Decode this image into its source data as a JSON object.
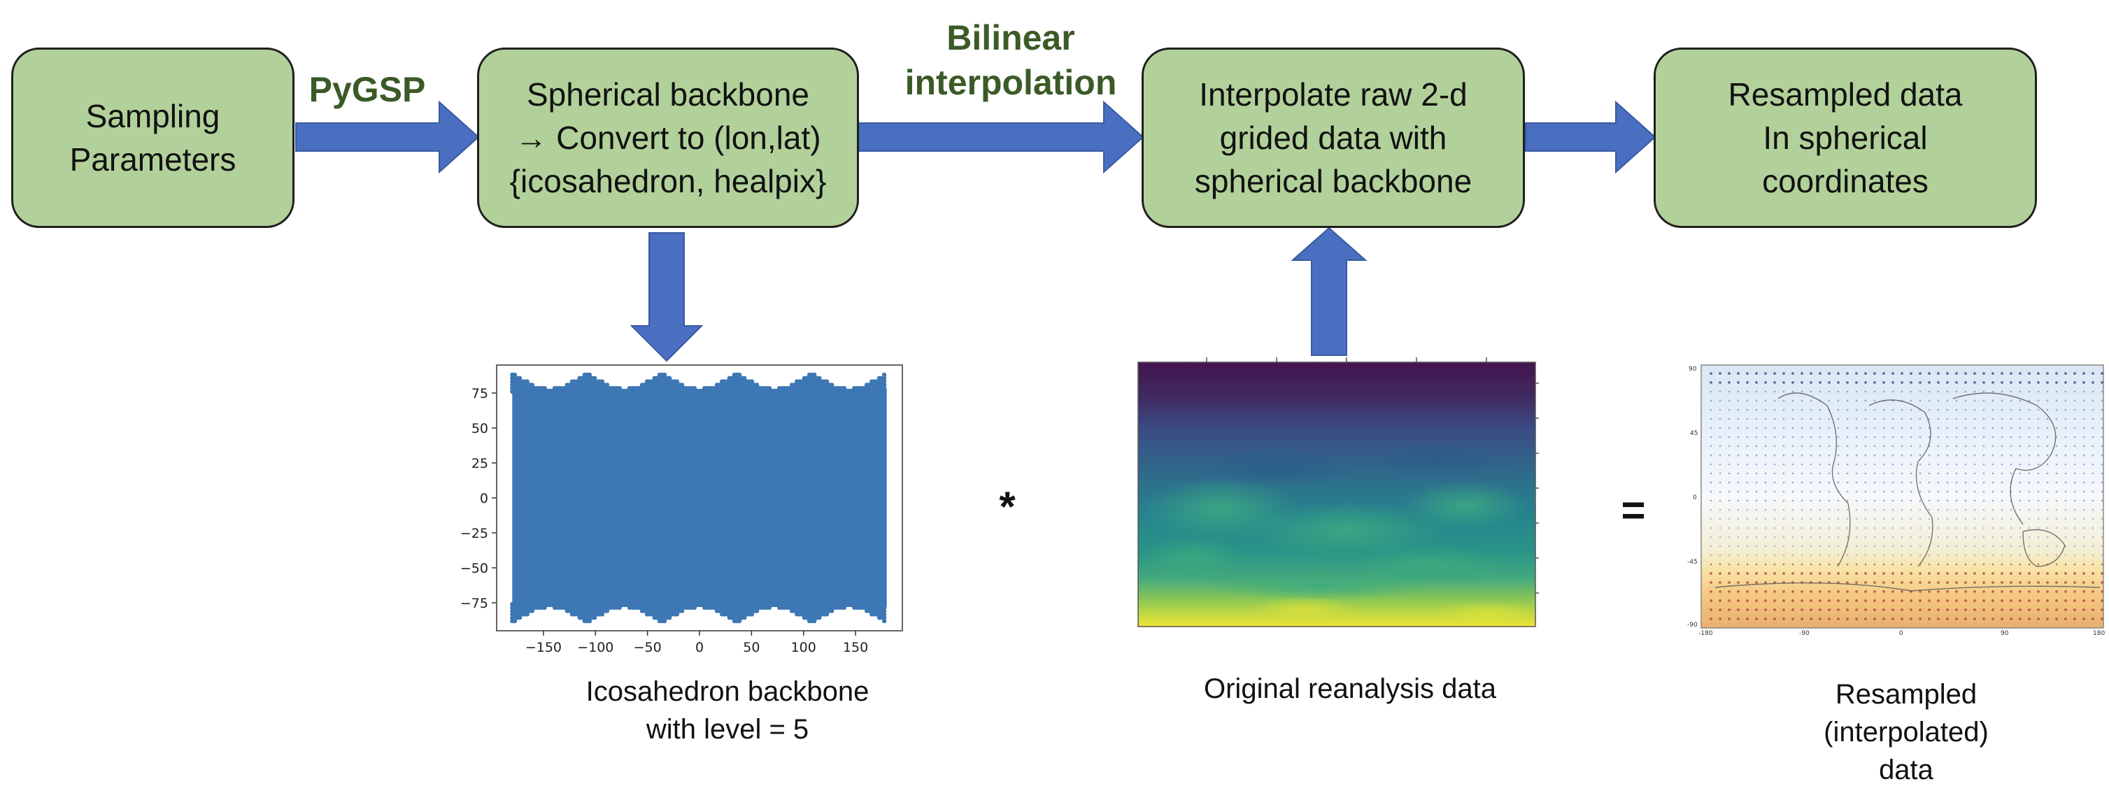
{
  "colors": {
    "box_fill": "#b2d19a",
    "arrow": "#4a6fc1",
    "edge_label": "#3b5a27",
    "points": "#3d77b4"
  },
  "nodes": {
    "sampling": "Sampling\nParameters",
    "backbone": "Spherical backbone\n→ Convert to (lon,lat)\n{icosahedron,  healpix}",
    "interpolate": "Interpolate raw 2-d\ngrided data with\nspherical backbone",
    "resampled": "Resampled data\nIn spherical\ncoordinates"
  },
  "edges": {
    "pygsp": "PyGSP",
    "bilinear": "Bilinear\ninterpolation"
  },
  "operators": {
    "multiply": "*",
    "equals": "="
  },
  "captions": {
    "icosahedron": "Icosahedron backbone\nwith level = 5",
    "original": "Original reanalysis data",
    "resampled": "Resampled\n(interpolated)\ndata"
  },
  "chart_data": {
    "type": "scatter",
    "xticks": [
      "−150",
      "−100",
      "−50",
      "0",
      "50",
      "100",
      "150"
    ],
    "xtick_values": [
      -150,
      -100,
      -50,
      0,
      50,
      100,
      150
    ],
    "yticks": [
      "75",
      "50",
      "25",
      "0",
      "−25",
      "−50",
      "−75"
    ],
    "ytick_values": [
      75,
      50,
      25,
      0,
      -25,
      -50,
      -75
    ],
    "xlim": [
      -195,
      195
    ],
    "ylim": [
      -95,
      95
    ],
    "point_extent": {
      "lon": [
        -180,
        180
      ],
      "lat": [
        -90,
        90
      ]
    }
  }
}
